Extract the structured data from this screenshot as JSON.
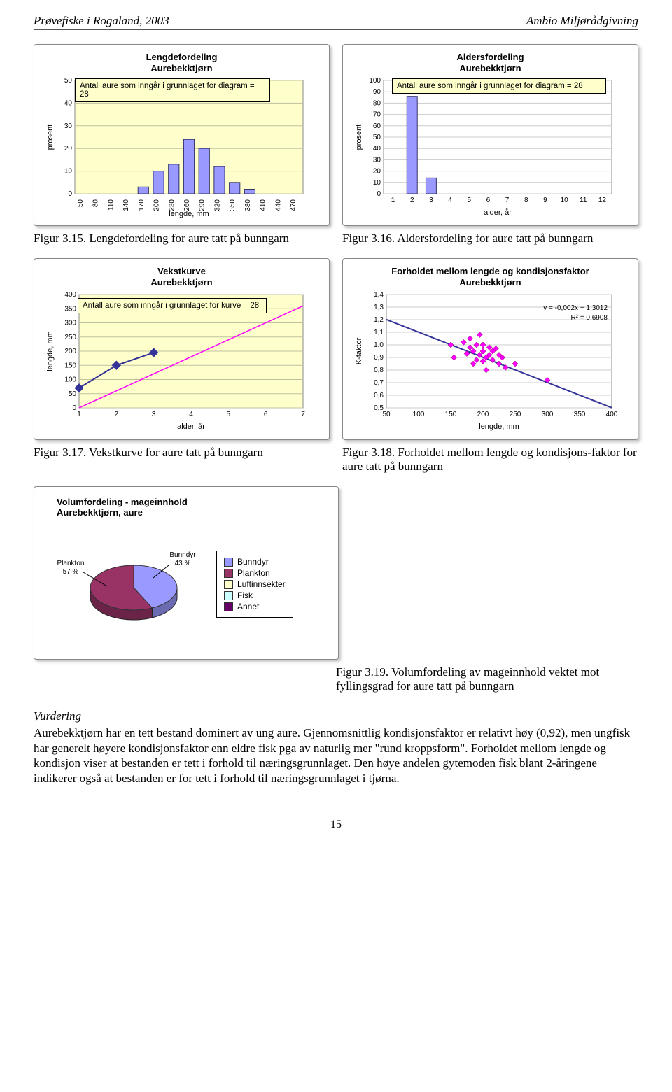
{
  "header": {
    "left": "Prøvefiske i Rogaland, 2003",
    "right": "Ambio Miljørådgivning"
  },
  "fig15": {
    "title_l1": "Lengdefordeling",
    "title_l2": "Aurebekktjørn",
    "note": "Antall aure som inngår i grunnlaget for diagram = 28",
    "xlabel": "lengde, mm",
    "ylabel": "prosent",
    "xticks": [
      "50",
      "80",
      "110",
      "140",
      "170",
      "200",
      "230",
      "260",
      "290",
      "320",
      "350",
      "380",
      "410",
      "440",
      "470"
    ],
    "yticks": [
      0,
      10,
      20,
      30,
      40,
      50
    ],
    "ymax": 50,
    "bars": [
      0,
      0,
      0,
      0,
      3,
      10,
      13,
      24,
      20,
      12,
      5,
      2,
      0,
      0,
      0
    ],
    "bar_fill": "#9999ff",
    "bar_stroke": "#333366",
    "plot_bg": "#ffffcc",
    "grid": "#c0c0a0",
    "caption_b": "Figur 3.15.",
    "caption": "Lengdefordeling for aure tatt på bunngarn"
  },
  "fig16": {
    "title_l1": "Aldersfordeling",
    "title_l2": "Aurebekktjørn",
    "note": "Antall aure som inngår i grunnlaget for diagram = 28",
    "xlabel": "alder, år",
    "ylabel": "prosent",
    "xticks": [
      "1",
      "2",
      "3",
      "4",
      "5",
      "6",
      "7",
      "8",
      "9",
      "10",
      "11",
      "12"
    ],
    "yticks": [
      0,
      10,
      20,
      30,
      40,
      50,
      60,
      70,
      80,
      90,
      100
    ],
    "ymax": 100,
    "bars": [
      0,
      86,
      14,
      0,
      0,
      0,
      0,
      0,
      0,
      0,
      0,
      0
    ],
    "bar_fill": "#9999ff",
    "bar_stroke": "#333366",
    "plot_bg": "#ffffff",
    "grid": "#cccccc",
    "caption_b": "Figur 3.16.",
    "caption": "Aldersfordeling for aure tatt på bunngarn"
  },
  "fig17": {
    "title_l1": "Vekstkurve",
    "title_l2": "Aurebekktjørn",
    "note": "Antall aure som inngår i grunnlaget for kurve = 28",
    "xlabel": "alder, år",
    "ylabel": "lengde, mm",
    "xticks": [
      "1",
      "2",
      "3",
      "4",
      "5",
      "6",
      "7"
    ],
    "yticks": [
      0,
      50,
      100,
      150,
      200,
      250,
      300,
      350,
      400
    ],
    "ymax": 400,
    "blue_pts": [
      [
        1,
        70
      ],
      [
        2,
        150
      ],
      [
        3,
        195
      ]
    ],
    "pink_pts": [
      [
        1,
        0
      ],
      [
        7,
        360
      ]
    ],
    "blue": "#333399",
    "pink": "#ff00ff",
    "plot_bg": "#ffffcc",
    "grid": "#c0c0a0",
    "caption_b": "Figur 3.17.",
    "caption": "Vekstkurve for aure tatt på bunngarn"
  },
  "fig18": {
    "title": "Forholdet mellom lengde og kondisjonsfaktor\nAurebekktjørn",
    "xlabel": "lengde, mm",
    "ylabel": "K-faktor",
    "xticks": [
      50,
      100,
      150,
      200,
      250,
      300,
      350,
      400
    ],
    "yticks": [
      "0,5",
      "0,6",
      "0,7",
      "0,8",
      "0,9",
      "1,0",
      "1,1",
      "1,2",
      "1,3",
      "1,4"
    ],
    "ymin": 0.5,
    "ymax": 1.4,
    "xmin": 50,
    "xmax": 400,
    "points": [
      [
        150,
        1.0
      ],
      [
        170,
        1.02
      ],
      [
        180,
        0.98
      ],
      [
        185,
        0.95
      ],
      [
        190,
        1.0
      ],
      [
        195,
        0.92
      ],
      [
        200,
        0.95
      ],
      [
        205,
        0.9
      ],
      [
        210,
        0.92
      ],
      [
        215,
        0.88
      ],
      [
        220,
        0.97
      ],
      [
        225,
        0.85
      ],
      [
        230,
        0.9
      ],
      [
        235,
        0.82
      ],
      [
        195,
        1.08
      ],
      [
        180,
        1.05
      ],
      [
        205,
        0.8
      ],
      [
        250,
        0.85
      ],
      [
        300,
        0.72
      ],
      [
        155,
        0.9
      ],
      [
        175,
        0.93
      ],
      [
        200,
        1.0
      ],
      [
        215,
        0.95
      ],
      [
        225,
        0.92
      ],
      [
        190,
        0.88
      ],
      [
        185,
        0.85
      ],
      [
        210,
        0.98
      ],
      [
        200,
        0.87
      ]
    ],
    "trend_slope": -0.002,
    "trend_int": 1.3012,
    "eq1": "y = -0,002x + 1,3012",
    "eq2": "R² = 0,6908",
    "pt_fill": "#ff00ff",
    "trend_col": "#333399",
    "plot_bg": "#ffffff",
    "grid": "#cccccc",
    "caption_b": "Figur 3.18.",
    "caption": "Forholdet mellom lengde og kondisjons-faktor for aure tatt på bunngarn"
  },
  "fig19": {
    "title_l1": "Volumfordeling - mageinnhold",
    "title_l2": "Aurebekktjørn, aure",
    "slices": [
      {
        "label": "Bunndyr",
        "pct": 43,
        "color": "#9999ff"
      },
      {
        "label": "Plankton",
        "pct": 57,
        "color": "#993366"
      }
    ],
    "legend": [
      {
        "label": "Bunndyr",
        "color": "#9999ff"
      },
      {
        "label": "Plankton",
        "color": "#993366"
      },
      {
        "label": "Luftinnsekter",
        "color": "#ffffcc"
      },
      {
        "label": "Fisk",
        "color": "#ccffff"
      },
      {
        "label": "Annet",
        "color": "#660066"
      }
    ],
    "lbl_bunn": "Bunndyr\n43 %",
    "lbl_plank": "Plankton\n57 %",
    "caption_b": "Figur 3.19.",
    "caption": "Volumfordeling av mageinnhold vektet mot fyllingsgrad for aure tatt på bunngarn"
  },
  "assessment": {
    "heading": "Vurdering",
    "body": "Aurebekktjørn har en tett bestand dominert av ung aure. Gjennomsnittlig kondisjonsfaktor er relativt høy (0,92), men ungfisk har generelt høyere kondisjonsfaktor enn eldre fisk pga av naturlig mer \"rund kroppsform\". Forholdet mellom lengde og kondisjon viser at bestanden er tett i forhold til næringsgrunnlaget. Den høye andelen gytemoden fisk blant 2-åringene indikerer også at bestanden er for tett i forhold til næringsgrunnlaget i tjørna."
  },
  "page_number": "15"
}
